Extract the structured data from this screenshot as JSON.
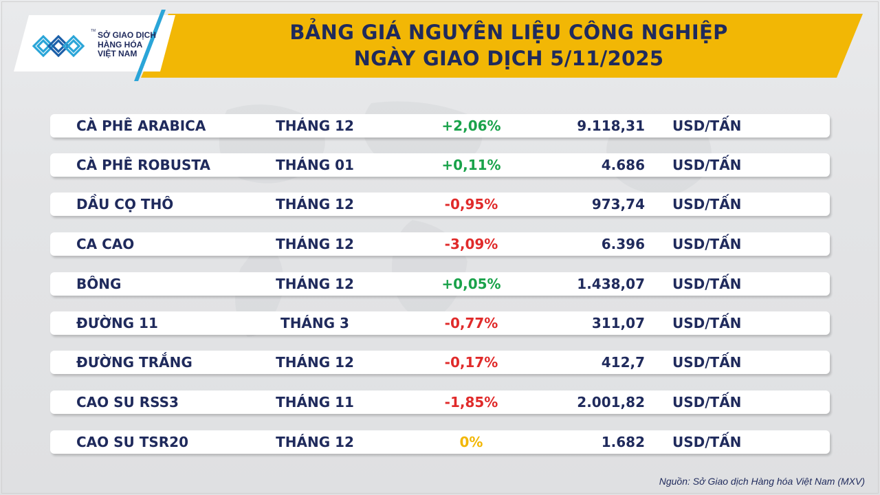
{
  "header": {
    "title_line1": "BẢNG GIÁ NGUYÊN LIỆU CÔNG NGHIỆP",
    "title_line2": "NGÀY GIAO DỊCH 5/11/2025"
  },
  "logo": {
    "line1": "SỞ GIAO DỊCH",
    "line2": "HÀNG HÓA",
    "line3": "VIỆT NAM",
    "tm": "TM",
    "icon": "mxv-logo-icon"
  },
  "rows": [
    {
      "name": "CÀ PHÊ ARABICA",
      "month": "THÁNG 12",
      "change": "+2,06%",
      "direction": "up",
      "price": "9.118,31",
      "unit": "USD/TẤN"
    },
    {
      "name": "CÀ PHÊ ROBUSTA",
      "month": "THÁNG 01",
      "change": "+0,11%",
      "direction": "up",
      "price": "4.686",
      "unit": "USD/TẤN"
    },
    {
      "name": "DẦU CỌ THÔ",
      "month": "THÁNG 12",
      "change": "-0,95%",
      "direction": "down",
      "price": "973,74",
      "unit": "USD/TẤN"
    },
    {
      "name": "CA CAO",
      "month": "THÁNG 12",
      "change": "-3,09%",
      "direction": "down",
      "price": "6.396",
      "unit": "USD/TẤN"
    },
    {
      "name": "BÔNG",
      "month": "THÁNG 12",
      "change": "+0,05%",
      "direction": "up",
      "price": "1.438,07",
      "unit": "USD/TẤN"
    },
    {
      "name": "ĐƯỜNG 11",
      "month": "THÁNG 3",
      "change": "-0,77%",
      "direction": "down",
      "price": "311,07",
      "unit": "USD/TẤN"
    },
    {
      "name": "ĐƯỜNG TRẮNG",
      "month": "THÁNG 12",
      "change": "-0,17%",
      "direction": "down",
      "price": "412,7",
      "unit": "USD/TẤN"
    },
    {
      "name": "CAO SU RSS3",
      "month": "THÁNG 11",
      "change": "-1,85%",
      "direction": "down",
      "price": "2.001,82",
      "unit": "USD/TẤN"
    },
    {
      "name": "CAO SU TSR20",
      "month": "THÁNG 12",
      "change": "0%",
      "direction": "flat",
      "price": "1.682",
      "unit": "USD/TẤN"
    }
  ],
  "footer": {
    "source": "Nguồn: Sở Giao dịch Hàng hóa Việt Nam (MXV)"
  },
  "colors": {
    "navy": "#1f2a5c",
    "banner": "#f2b705",
    "up": "#19a24a",
    "down": "#e02a2a",
    "flat": "#f2b705",
    "accent": "#2aa5d8"
  }
}
